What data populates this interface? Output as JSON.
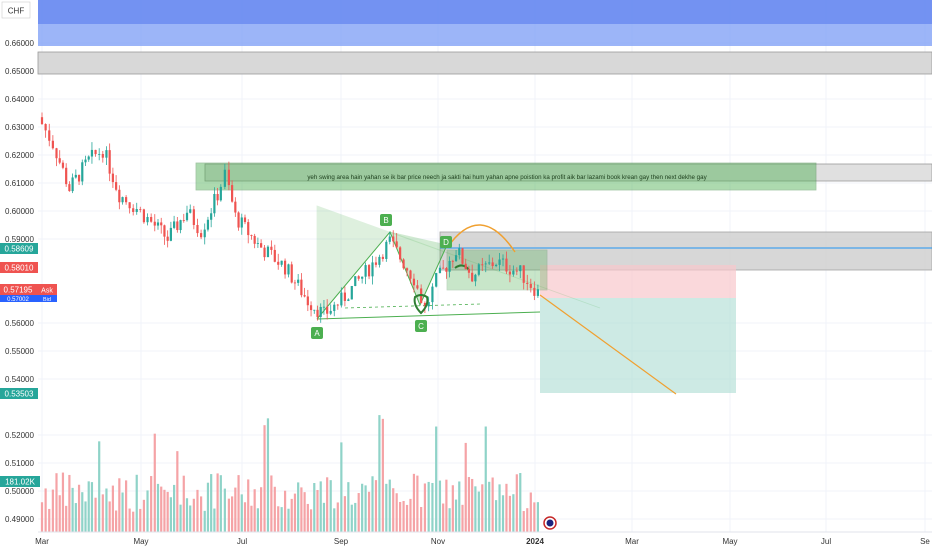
{
  "currency_label": "CHF",
  "annotation": "yeh swing area hain yahan se ik bar price neech ja sakti hai hum yahan apne poistion ka profit aik bar lazami book krean gay  then next dekhe gay",
  "pattern_points": [
    "A",
    "B",
    "C",
    "D"
  ],
  "price_tags": [
    {
      "value": "0.58609",
      "color": "#26a69a"
    },
    {
      "value": "0.58010",
      "color": "#ef5350"
    },
    {
      "value": "0.57195",
      "color": "#ef5350",
      "side": "Ask"
    },
    {
      "value": "0.57002",
      "color": "#2962ff",
      "side": "Bid"
    },
    {
      "value": "0.53503",
      "color": "#26a69a"
    }
  ],
  "volume_tag": "181.02K",
  "colors": {
    "up": "#26a69a",
    "down": "#ef5350",
    "zone_blue": "#5b7ff0",
    "zone_green": "#4caf50",
    "arc": "#f0a030"
  },
  "chart_data": {
    "type": "candlestick",
    "y_axis": {
      "ticks": [
        "0.66000",
        "0.65000",
        "0.64000",
        "0.63000",
        "0.62000",
        "0.61000",
        "0.60000",
        "0.59000",
        "0.56000",
        "0.55000",
        "0.54000",
        "0.52000",
        "0.51000",
        "0.50000",
        "0.49000"
      ],
      "range": [
        0.485,
        0.667
      ]
    },
    "x_axis": {
      "ticks": [
        "Mar",
        "May",
        "Jul",
        "Sep",
        "Nov",
        "2024",
        "Mar",
        "May",
        "Jul",
        "Se"
      ]
    },
    "price_series": [
      {
        "date": "2023-03-01",
        "close": 0.6335
      },
      {
        "date": "2023-03-10",
        "close": 0.624
      },
      {
        "date": "2023-03-20",
        "close": 0.608
      },
      {
        "date": "2023-04-01",
        "close": 0.618
      },
      {
        "date": "2023-04-10",
        "close": 0.622
      },
      {
        "date": "2023-04-20",
        "close": 0.606
      },
      {
        "date": "2023-05-01",
        "close": 0.601
      },
      {
        "date": "2023-05-10",
        "close": 0.596
      },
      {
        "date": "2023-05-20",
        "close": 0.59
      },
      {
        "date": "2023-06-01",
        "close": 0.6
      },
      {
        "date": "2023-06-10",
        "close": 0.593
      },
      {
        "date": "2023-06-20",
        "close": 0.606
      },
      {
        "date": "2023-06-25",
        "close": 0.613
      },
      {
        "date": "2023-07-01",
        "close": 0.598
      },
      {
        "date": "2023-07-15",
        "close": 0.588
      },
      {
        "date": "2023-08-01",
        "close": 0.58
      },
      {
        "date": "2023-08-15",
        "close": 0.568
      },
      {
        "date": "2023-08-25",
        "close": 0.563
      },
      {
        "date": "2023-09-05",
        "close": 0.568
      },
      {
        "date": "2023-09-20",
        "close": 0.578
      },
      {
        "date": "2023-10-05",
        "close": 0.589
      },
      {
        "date": "2023-10-20",
        "close": 0.576
      },
      {
        "date": "2023-10-27",
        "close": 0.565
      },
      {
        "date": "2023-11-03",
        "close": 0.575
      },
      {
        "date": "2023-11-15",
        "close": 0.586
      },
      {
        "date": "2023-11-25",
        "close": 0.577
      },
      {
        "date": "2023-12-10",
        "close": 0.582
      },
      {
        "date": "2023-12-25",
        "close": 0.578
      },
      {
        "date": "2024-01-05",
        "close": 0.571
      }
    ],
    "zones": [
      {
        "label": "resistance-top",
        "from": 0.662,
        "to": 0.667
      },
      {
        "label": "resistance-2",
        "from": 0.65,
        "to": 0.654
      },
      {
        "label": "swing-area",
        "from": 0.6065,
        "to": 0.6165
      },
      {
        "label": "sell-zone",
        "from": 0.5775,
        "to": 0.5835
      },
      {
        "label": "target-zone",
        "from": 0.5355,
        "to": 0.57
      }
    ],
    "volume": {
      "max": 181020,
      "unit": "shares"
    }
  }
}
